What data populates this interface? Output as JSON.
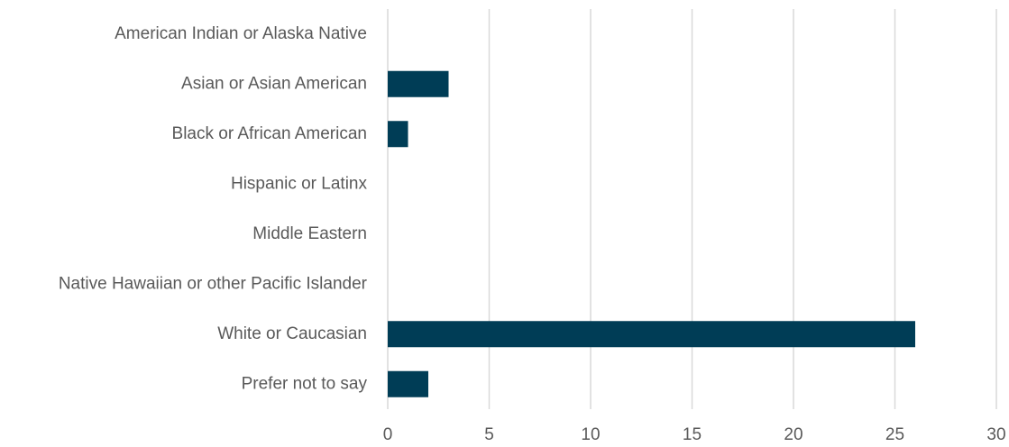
{
  "chart_data": {
    "type": "bar",
    "orientation": "horizontal",
    "categories": [
      "American Indian or Alaska Native",
      "Asian or Asian American",
      "Black or African American",
      "Hispanic or Latinx",
      "Middle Eastern",
      "Native Hawaiian or other Pacific Islander",
      "White or Caucasian",
      "Prefer not to say"
    ],
    "values": [
      0,
      3,
      1,
      0,
      0,
      0,
      26,
      2
    ],
    "color": "#003d56",
    "xlim": [
      0,
      30
    ],
    "xticks": [
      0,
      5,
      10,
      15,
      20,
      25,
      30
    ],
    "grid": true
  }
}
